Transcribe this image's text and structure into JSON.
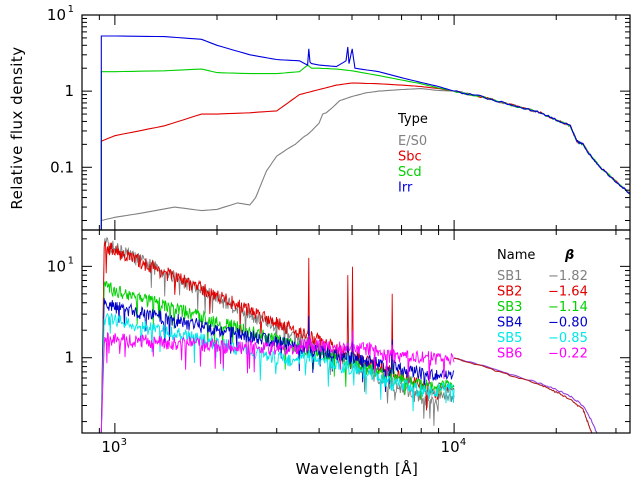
{
  "chart_data": [
    {
      "type": "line",
      "panel": "top",
      "ylabel": "Relative flux density",
      "xscale": "log",
      "yscale": "log",
      "xlim": [
        800,
        33000
      ],
      "ylim": [
        0.015,
        10
      ],
      "y_ticks": [
        {
          "value": 0.1,
          "label": "0.1",
          "sup": ""
        },
        {
          "value": 1,
          "label": "1",
          "sup": ""
        },
        {
          "value": 10,
          "label": "10",
          "sup": "1"
        }
      ],
      "legend": {
        "title": "Type",
        "placement": "center-right"
      },
      "series": [
        {
          "name": "E/S0",
          "color": "#808080",
          "x": [
            912,
            1000,
            1200,
            1500,
            1800,
            2000,
            2300,
            2500,
            2600,
            2800,
            3000,
            3200,
            3400,
            3600,
            3700,
            3800,
            4000,
            4100,
            4200,
            4400,
            4600,
            5000,
            5500,
            6000,
            7000,
            8000,
            9000,
            10000
          ],
          "y": [
            0.02,
            0.022,
            0.025,
            0.03,
            0.027,
            0.028,
            0.034,
            0.032,
            0.04,
            0.09,
            0.14,
            0.17,
            0.2,
            0.25,
            0.27,
            0.3,
            0.38,
            0.5,
            0.52,
            0.62,
            0.75,
            0.85,
            0.95,
            1.0,
            1.05,
            1.08,
            1.02,
            1.0
          ]
        },
        {
          "name": "Sbc",
          "color": "#e00000",
          "x": [
            912,
            1000,
            1400,
            1800,
            2000,
            2500,
            3000,
            3500,
            4000,
            4500,
            5000,
            6000,
            7000,
            8000,
            9000,
            10000
          ],
          "y": [
            0.22,
            0.26,
            0.35,
            0.5,
            0.5,
            0.52,
            0.55,
            0.9,
            1.05,
            1.2,
            1.28,
            1.25,
            1.2,
            1.15,
            1.08,
            1.0
          ]
        },
        {
          "name": "Scd",
          "color": "#00d000",
          "x": [
            912,
            1000,
            1400,
            1800,
            2000,
            2500,
            3000,
            3500,
            3700,
            3800,
            4000,
            4500,
            5000,
            6000,
            7000,
            8000,
            9000,
            10000
          ],
          "y": [
            1.8,
            1.8,
            1.85,
            1.95,
            1.75,
            1.7,
            1.7,
            1.8,
            2.2,
            2.0,
            2.0,
            1.95,
            1.85,
            1.6,
            1.4,
            1.25,
            1.1,
            1.0
          ]
        },
        {
          "name": "Irr",
          "color": "#0000e0",
          "x": [
            912,
            1000,
            1400,
            1800,
            2000,
            2500,
            3000,
            3500,
            3700,
            3730,
            3760,
            3800,
            4000,
            4500,
            4800,
            4860,
            4900,
            5007,
            5100,
            6000,
            7000,
            8000,
            9000,
            10000
          ],
          "y": [
            5.3,
            5.3,
            5.2,
            4.8,
            4.0,
            3.0,
            2.6,
            2.5,
            2.2,
            3.6,
            2.4,
            2.3,
            2.2,
            2.1,
            2.5,
            3.8,
            2.3,
            3.6,
            2.0,
            1.8,
            1.5,
            1.3,
            1.15,
            1.0
          ]
        }
      ],
      "common_tail": {
        "x": [
          10000,
          12000,
          14000,
          16000,
          18000,
          20000,
          22000,
          23000,
          24000,
          25000,
          27000,
          30000,
          33000
        ],
        "y": [
          1.0,
          0.85,
          0.7,
          0.6,
          0.52,
          0.42,
          0.35,
          0.22,
          0.2,
          0.15,
          0.1,
          0.065,
          0.045
        ]
      }
    },
    {
      "type": "line",
      "panel": "bottom",
      "xlabel": "Wavelength [Å]",
      "xscale": "log",
      "yscale": "log",
      "xlim": [
        800,
        33000
      ],
      "ylim": [
        0.15,
        25
      ],
      "x_ticks": [
        {
          "value": 1000,
          "label": "10",
          "sup": "3"
        },
        {
          "value": 10000,
          "label": "10",
          "sup": "4"
        }
      ],
      "y_ticks": [
        {
          "value": 1,
          "label": "1",
          "sup": ""
        },
        {
          "value": 10,
          "label": "10",
          "sup": "1"
        }
      ],
      "legend": {
        "name_header": "Name",
        "beta_header": "β",
        "placement": "right"
      },
      "series": [
        {
          "name": "SB1",
          "beta": "−1.82",
          "color": "#808080",
          "level": 16.0,
          "slope": 1.82,
          "peak": 1.0
        },
        {
          "name": "SB2",
          "beta": "−1.64",
          "color": "#e00000",
          "level": 15.0,
          "slope": 1.64,
          "peak": 9.0
        },
        {
          "name": "SB3",
          "beta": "−1.14",
          "color": "#00d000",
          "level": 5.5,
          "slope": 1.14,
          "peak": 2.0
        },
        {
          "name": "SB4",
          "beta": "−0.80",
          "color": "#0000c8",
          "level": 3.6,
          "slope": 0.8,
          "peak": 2.0
        },
        {
          "name": "SB5",
          "beta": "−0.85",
          "color": "#00e8e8",
          "level": 2.6,
          "slope": 0.85,
          "peak": 1.8
        },
        {
          "name": "SB6",
          "beta": "−0.22",
          "color": "#ff00ff",
          "level": 1.6,
          "slope": 0.22,
          "peak": 1.6
        }
      ],
      "tails": [
        {
          "color": "#9040e0",
          "x": [
            10000,
            14000,
            18000,
            20000,
            22000,
            24000,
            25500,
            27000
          ],
          "y": [
            1.0,
            0.7,
            0.52,
            0.45,
            0.38,
            0.3,
            0.2,
            0.12
          ]
        },
        {
          "color": "#b02020",
          "x": [
            10000,
            14000,
            18000,
            20000,
            22000,
            24000,
            25000,
            26000
          ],
          "y": [
            1.0,
            0.68,
            0.5,
            0.42,
            0.35,
            0.27,
            0.18,
            0.12
          ]
        }
      ]
    }
  ]
}
